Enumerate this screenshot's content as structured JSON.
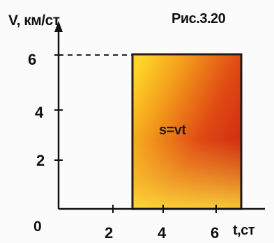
{
  "caption": "Рис.3.20",
  "axes": {
    "y_label": "V, км/ст",
    "x_label": "t,ст",
    "origin_label": "0",
    "y_ticks": [
      "6",
      "4",
      "2"
    ],
    "x_ticks": [
      "2",
      "4",
      "6"
    ]
  },
  "area_label": "s=vt",
  "colors": {
    "axis": "#111111",
    "fill_light": "#ffe030",
    "fill_dark": "#d42010",
    "dashed_line": "#222222"
  }
}
